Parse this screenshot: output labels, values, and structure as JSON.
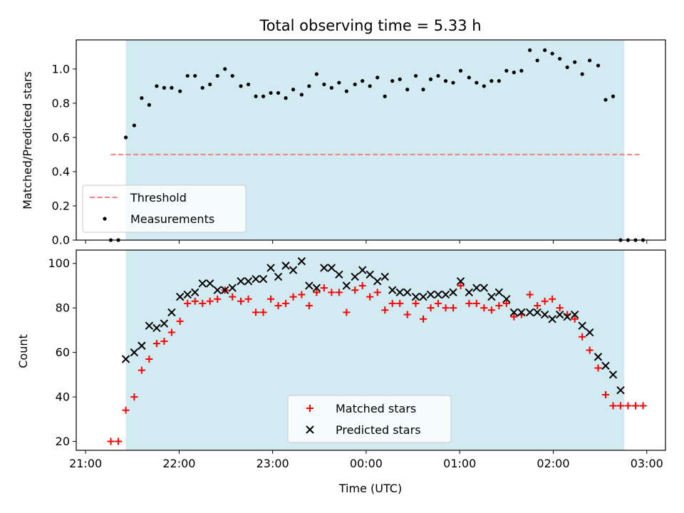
{
  "figure": {
    "title": "Total observing time = 5.33 h",
    "xlabel": "Time (UTC)",
    "xticks": [
      "21:00",
      "22:00",
      "23:00",
      "00:00",
      "01:00",
      "02:00",
      "03:00"
    ]
  },
  "colors": {
    "shade": "#add8e6",
    "threshold": "#f08080",
    "measurements": "#000000",
    "matched": "#ff0000",
    "predicted": "#000000"
  },
  "chart_data": [
    {
      "type": "scatter",
      "ylabel": "Matched/Predicted stars",
      "x_unit": "hours after 21:00 UTC",
      "xlim": [
        -0.1,
        6.2
      ],
      "ylim": [
        0.0,
        1.17
      ],
      "yticks": [
        0.0,
        0.2,
        0.4,
        0.6,
        0.8,
        1.0
      ],
      "shaded_region": [
        0.43,
        5.76
      ],
      "threshold": {
        "name": "Threshold",
        "y": 0.5,
        "x_range": [
          0.27,
          5.93
        ],
        "style": "dashed"
      },
      "legend": {
        "placement": "lower-left",
        "entries": [
          "Threshold",
          "Measurements"
        ]
      },
      "series": [
        {
          "name": "Measurements",
          "marker": "dot",
          "x": [
            0.27,
            0.35,
            0.43,
            0.52,
            0.6,
            0.68,
            0.76,
            0.84,
            0.92,
            1.01,
            1.09,
            1.17,
            1.25,
            1.33,
            1.41,
            1.49,
            1.57,
            1.66,
            1.74,
            1.82,
            1.9,
            1.98,
            2.06,
            2.14,
            2.22,
            2.31,
            2.39,
            2.47,
            2.55,
            2.63,
            2.71,
            2.79,
            2.88,
            2.96,
            3.04,
            3.12,
            3.2,
            3.28,
            3.36,
            3.44,
            3.53,
            3.61,
            3.69,
            3.77,
            3.85,
            3.93,
            4.01,
            4.1,
            4.18,
            4.26,
            4.34,
            4.42,
            4.5,
            4.58,
            4.66,
            4.75,
            4.83,
            4.91,
            4.99,
            5.07,
            5.15,
            5.23,
            5.31,
            5.39,
            5.48,
            5.56,
            5.64,
            5.72,
            5.8,
            5.88,
            5.96
          ],
          "y": [
            0.0,
            0.0,
            0.6,
            0.67,
            0.83,
            0.79,
            0.9,
            0.89,
            0.89,
            0.87,
            0.96,
            0.96,
            0.89,
            0.91,
            0.96,
            1.0,
            0.96,
            0.9,
            0.91,
            0.84,
            0.84,
            0.86,
            0.86,
            0.83,
            0.88,
            0.85,
            0.9,
            0.97,
            0.91,
            0.89,
            0.92,
            0.87,
            0.91,
            0.93,
            0.9,
            0.95,
            0.84,
            0.93,
            0.94,
            0.88,
            0.96,
            0.88,
            0.94,
            0.96,
            0.93,
            0.92,
            0.99,
            0.95,
            0.92,
            0.9,
            0.93,
            0.93,
            0.99,
            0.98,
            0.99,
            1.11,
            1.05,
            1.11,
            1.09,
            1.06,
            1.01,
            1.04,
            0.97,
            1.05,
            1.02,
            0.82,
            0.84,
            0.0,
            0.0,
            0.0,
            0.0
          ]
        }
      ]
    },
    {
      "type": "scatter",
      "ylabel": "Count",
      "x_unit": "hours after 21:00 UTC",
      "xlim": [
        -0.1,
        6.2
      ],
      "ylim": [
        16,
        106
      ],
      "yticks": [
        20,
        40,
        60,
        80,
        100
      ],
      "shaded_region": [
        0.43,
        5.76
      ],
      "legend": {
        "placement": "lower-center",
        "entries": [
          "Matched stars",
          "Predicted stars"
        ]
      },
      "series": [
        {
          "name": "Matched stars",
          "marker": "plus",
          "x": [
            0.27,
            0.35,
            0.43,
            0.52,
            0.6,
            0.68,
            0.76,
            0.84,
            0.92,
            1.01,
            1.09,
            1.17,
            1.25,
            1.33,
            1.41,
            1.49,
            1.57,
            1.66,
            1.74,
            1.82,
            1.9,
            1.98,
            2.06,
            2.14,
            2.22,
            2.31,
            2.39,
            2.47,
            2.55,
            2.63,
            2.71,
            2.79,
            2.88,
            2.96,
            3.04,
            3.12,
            3.2,
            3.28,
            3.36,
            3.44,
            3.53,
            3.61,
            3.69,
            3.77,
            3.85,
            3.93,
            4.01,
            4.1,
            4.18,
            4.26,
            4.34,
            4.42,
            4.5,
            4.58,
            4.66,
            4.75,
            4.83,
            4.91,
            4.99,
            5.07,
            5.15,
            5.23,
            5.31,
            5.39,
            5.48,
            5.56,
            5.64,
            5.72,
            5.8,
            5.88,
            5.96
          ],
          "y": [
            20,
            20,
            34,
            40,
            52,
            57,
            64,
            65,
            69,
            74,
            82,
            83,
            82,
            83,
            84,
            88,
            85,
            83,
            84,
            78,
            78,
            84,
            81,
            82,
            85,
            86,
            81,
            87,
            89,
            87,
            87,
            78,
            88,
            90,
            85,
            87,
            79,
            82,
            82,
            77,
            82,
            75,
            80,
            82,
            80,
            80,
            90,
            82,
            82,
            80,
            79,
            81,
            82,
            76,
            77,
            86,
            81,
            83,
            84,
            80,
            77,
            75,
            67,
            61,
            53,
            41,
            36,
            36,
            36,
            36,
            36
          ]
        },
        {
          "name": "Predicted stars",
          "marker": "x",
          "x": [
            0.43,
            0.52,
            0.6,
            0.68,
            0.76,
            0.84,
            0.92,
            1.01,
            1.09,
            1.17,
            1.25,
            1.33,
            1.41,
            1.49,
            1.57,
            1.66,
            1.74,
            1.82,
            1.9,
            1.98,
            2.06,
            2.14,
            2.22,
            2.31,
            2.39,
            2.47,
            2.55,
            2.63,
            2.71,
            2.79,
            2.88,
            2.96,
            3.04,
            3.12,
            3.2,
            3.28,
            3.36,
            3.44,
            3.53,
            3.61,
            3.69,
            3.77,
            3.85,
            3.93,
            4.01,
            4.1,
            4.18,
            4.26,
            4.34,
            4.42,
            4.5,
            4.58,
            4.66,
            4.75,
            4.83,
            4.91,
            4.99,
            5.07,
            5.15,
            5.23,
            5.31,
            5.39,
            5.48,
            5.56,
            5.64,
            5.72
          ],
          "y": [
            57,
            60,
            63,
            72,
            71,
            73,
            78,
            85,
            86,
            87,
            91,
            91,
            88,
            88,
            89,
            92,
            92,
            93,
            93,
            98,
            94,
            99,
            97,
            101,
            90,
            89,
            98,
            98,
            95,
            90,
            94,
            97,
            95,
            92,
            94,
            88,
            87,
            87,
            85,
            85,
            86,
            86,
            86,
            87,
            92,
            87,
            89,
            89,
            85,
            87,
            84,
            78,
            78,
            78,
            78,
            77,
            75,
            77,
            76,
            77,
            72,
            69,
            58,
            54,
            50,
            43
          ]
        }
      ]
    }
  ]
}
